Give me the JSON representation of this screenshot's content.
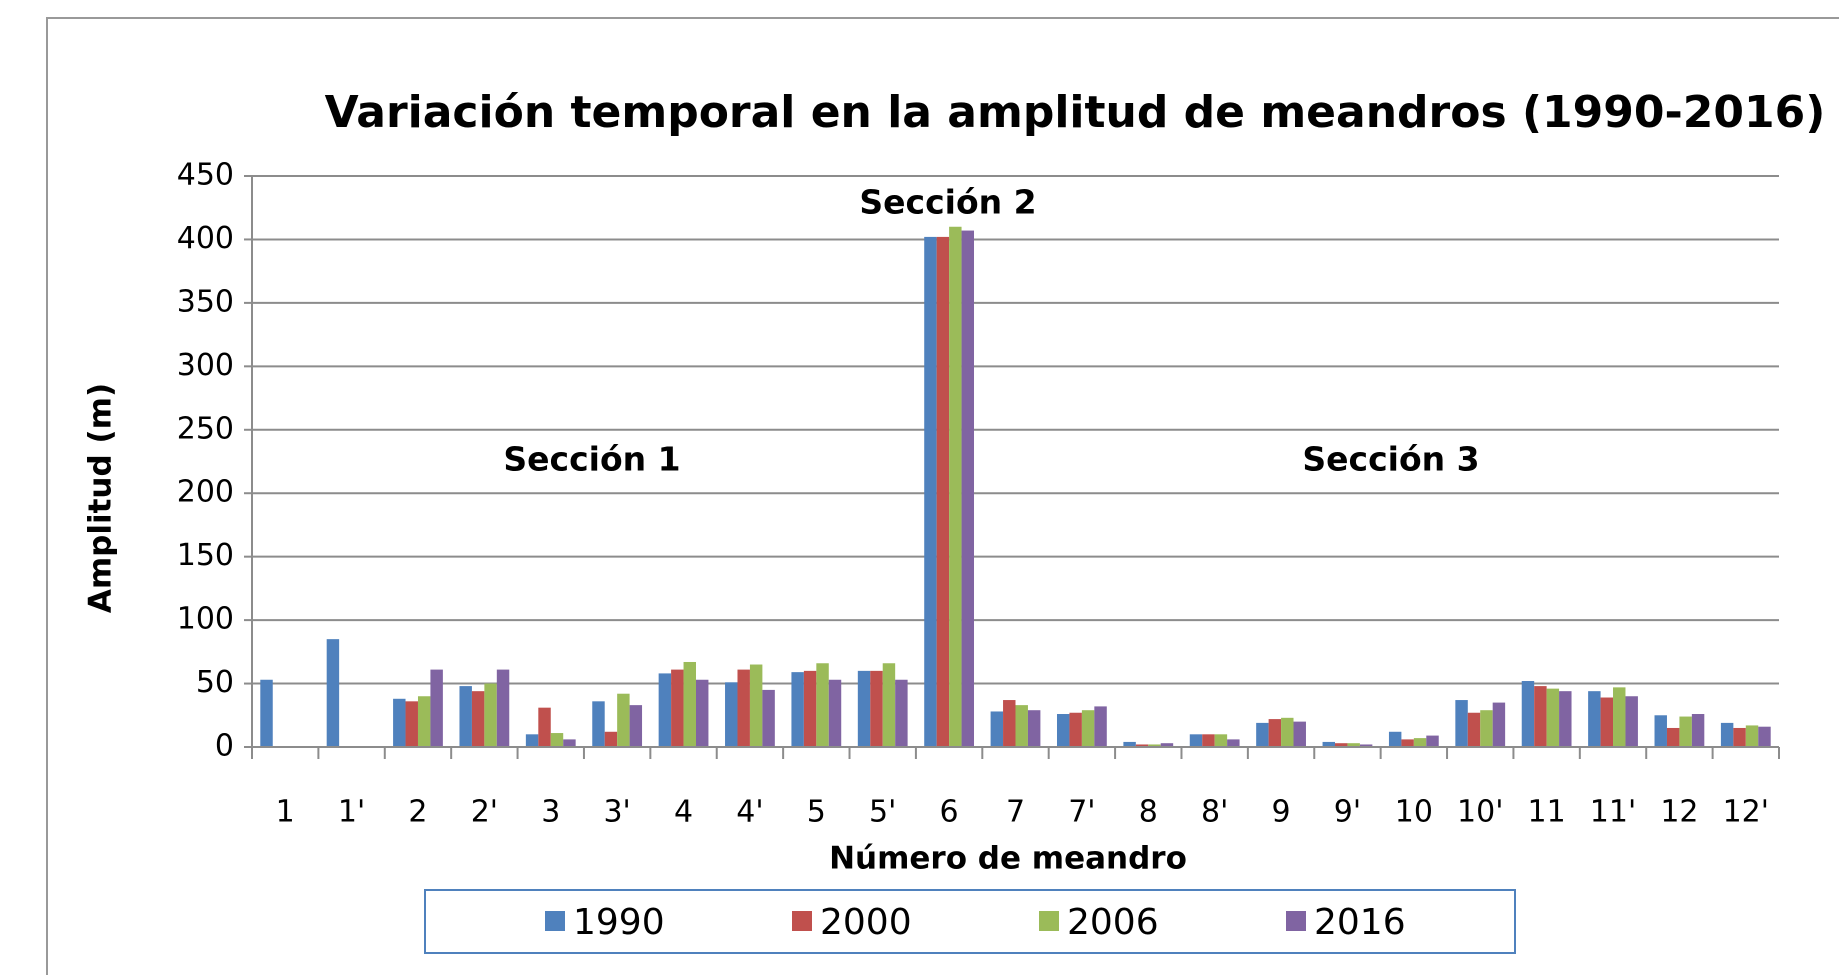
{
  "chart_data": {
    "type": "bar",
    "title": "Variación temporal en la amplitud de meandros (1990-2016)",
    "x_label": "Número de meandro",
    "y_label": "Amplitud (m)",
    "annotations": [
      "Sección 1",
      "Sección 2",
      "Sección 3"
    ],
    "categories": [
      "1",
      "1'",
      "2",
      "2'",
      "3",
      "3'",
      "4",
      "4'",
      "5",
      "5'",
      "6",
      "7",
      "7'",
      "8",
      "8'",
      "9",
      "9'",
      "10",
      "10'",
      "11",
      "11'",
      "12",
      "12'"
    ],
    "series": [
      {
        "name": "1990",
        "color": "#4f81bd",
        "values": [
          53,
          85,
          38,
          48,
          10,
          36,
          58,
          51,
          59,
          60,
          402,
          28,
          26,
          4,
          10,
          19,
          4,
          12,
          37,
          52,
          44,
          25,
          19
        ]
      },
      {
        "name": "2000",
        "color": "#c0504d",
        "values": [
          null,
          null,
          36,
          44,
          31,
          12,
          61,
          61,
          60,
          60,
          402,
          37,
          27,
          2,
          10,
          22,
          3,
          6,
          27,
          48,
          39,
          15,
          15
        ]
      },
      {
        "name": "2006",
        "color": "#9bbb59",
        "values": [
          null,
          null,
          40,
          50,
          11,
          42,
          67,
          65,
          66,
          66,
          410,
          33,
          29,
          2,
          10,
          23,
          3,
          7,
          29,
          46,
          47,
          24,
          17
        ]
      },
      {
        "name": "2016",
        "color": "#8064a2",
        "values": [
          null,
          null,
          61,
          61,
          6,
          33,
          53,
          45,
          53,
          53,
          407,
          29,
          32,
          3,
          6,
          20,
          2,
          9,
          35,
          44,
          40,
          26,
          16
        ]
      }
    ],
    "ylim": [
      0,
      450
    ],
    "yticks": [
      0,
      50,
      100,
      150,
      200,
      250,
      300,
      350,
      400,
      450
    ],
    "grid": true,
    "legend": "bottom"
  }
}
